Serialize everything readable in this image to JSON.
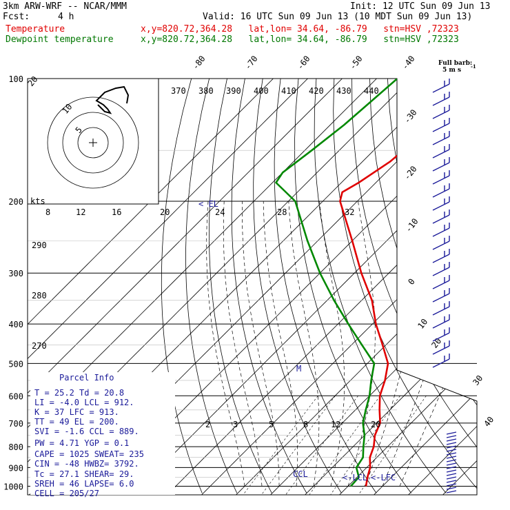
{
  "header": {
    "model": "3km ARW-WRF -- NCAR/MMM",
    "init": "Init: 12 UTC Sun 09 Jun 13",
    "fcst_label": "Fcst:",
    "fcst_value": "4 h",
    "valid": "Valid: 16 UTC Sun 09 Jun 13 (10 MDT Sun 09 Jun 13)",
    "temp_label": "Temperature",
    "dew_label": "Dewpoint temperature",
    "point_info": "x,y=820.72,364.28   lat,lon= 34.64, -86.79   stn=HSV ,72323"
  },
  "colors": {
    "temperature": "#e00000",
    "dewpoint": "#008800",
    "text_blue": "#1a1a99"
  },
  "chart_data": {
    "type": "line",
    "chart_kind": "skew-T log-P sounding",
    "y_scale": "log",
    "pressure_ticks": [
      "100",
      "200",
      "300",
      "400",
      "500",
      "600",
      "700",
      "800",
      "900",
      "1000"
    ],
    "temp_isotherm_labels": [
      "-80",
      "-70",
      "-60",
      "-50",
      "-40",
      "-30",
      "-20",
      "-10",
      "0",
      "10",
      "20",
      "30",
      "40"
    ],
    "theta_labels": [
      "370",
      "380",
      "390",
      "400",
      "410",
      "420",
      "430",
      "440"
    ],
    "side_theta_labels": [
      "290",
      "280",
      "270"
    ],
    "mixing_ratio_labels": [
      "2",
      "3",
      "5",
      "8",
      "12",
      "20"
    ],
    "hodo_kts_label": "kts",
    "hodo_speed_labels": [
      "8",
      "12",
      "16",
      "20",
      "24",
      "28",
      "32"
    ],
    "series": [
      {
        "name": "Temperature",
        "points": [
          [
            100,
            -61
          ],
          [
            130,
            -60
          ],
          [
            160,
            -62
          ],
          [
            180,
            -65
          ],
          [
            190,
            -67
          ],
          [
            200,
            -65
          ],
          [
            250,
            -50
          ],
          [
            300,
            -38
          ],
          [
            350,
            -27
          ],
          [
            400,
            -19
          ],
          [
            450,
            -11
          ],
          [
            500,
            -4
          ],
          [
            550,
            0
          ],
          [
            600,
            3
          ],
          [
            650,
            7
          ],
          [
            700,
            11
          ],
          [
            750,
            13
          ],
          [
            800,
            16
          ],
          [
            850,
            18
          ],
          [
            900,
            21
          ],
          [
            950,
            23
          ],
          [
            1000,
            25.2
          ]
        ]
      },
      {
        "name": "Dewpoint temperature",
        "points": [
          [
            100,
            -84
          ],
          [
            130,
            -86
          ],
          [
            150,
            -88
          ],
          [
            170,
            -90
          ],
          [
            180,
            -89
          ],
          [
            200,
            -78
          ],
          [
            250,
            -63
          ],
          [
            300,
            -50
          ],
          [
            350,
            -38
          ],
          [
            400,
            -27
          ],
          [
            450,
            -17
          ],
          [
            500,
            -8
          ],
          [
            550,
            -4
          ],
          [
            600,
            0
          ],
          [
            650,
            3
          ],
          [
            700,
            6
          ],
          [
            750,
            10
          ],
          [
            800,
            13
          ],
          [
            850,
            16
          ],
          [
            900,
            17
          ],
          [
            950,
            20.5
          ],
          [
            1000,
            20.8
          ]
        ]
      }
    ],
    "annotations": {
      "el": "< EL",
      "m": "M",
      "lcl_env": "CCL",
      "lcl_parcel": "<-LCL",
      "lfc_parcel": "<-LFC",
      "barb_note_line1": "Full barb:",
      "barb_note_line2": "5 m s",
      "barb_note_sup": "-1"
    },
    "parcel_info": {
      "title": "Parcel Info",
      "rows": [
        "T  =   25.2  Td =  20.8",
        "LI =   -4.0  LCL =  912.",
        "K  =     37  LFC =  913.",
        "TT =     49  EL  =  200.",
        "SVI =  -1.6  CCL =  889.",
        "PW =   4.71  YGP =   0.1",
        "CAPE = 1025  SWEAT=  235",
        "CIN  =  -48  HWBZ= 3792.",
        "Tc  =  27.1  SHEAR=  29.",
        "SREH =   46  LAPSE=  6.0",
        "CELL = 205/27"
      ]
    }
  }
}
